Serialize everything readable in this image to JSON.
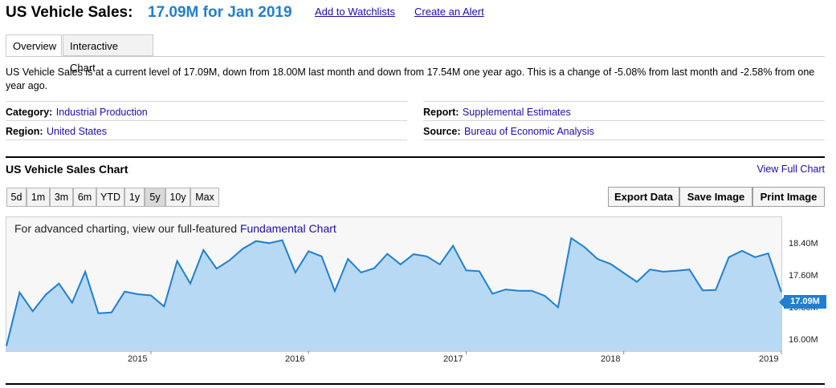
{
  "header": {
    "title": "US Vehicle Sales:",
    "value_text": "17.09M for Jan 2019",
    "watchlist_link": "Add to Watchlists",
    "alert_link": "Create an Alert"
  },
  "tabs": [
    {
      "label": "Overview",
      "active": true
    },
    {
      "label": "Interactive Chart",
      "active": false
    }
  ],
  "description": "US Vehicle Sales is at a current level of 17.09M, down from 18.00M last month and down from 17.54M one year ago. This is a change of -5.08% from last month and -2.58% from one year ago.",
  "meta": {
    "category_label": "Category:",
    "category_value": "Industrial Production",
    "region_label": "Region:",
    "region_value": "United States",
    "report_label": "Report:",
    "report_value": "Supplemental Estimates",
    "source_label": "Source:",
    "source_value": "Bureau of Economic Analysis"
  },
  "chart_section": {
    "title": "US Vehicle Sales Chart",
    "view_full": "View Full Chart",
    "ranges": [
      {
        "label": "5d",
        "selected": false
      },
      {
        "label": "1m",
        "selected": false
      },
      {
        "label": "3m",
        "selected": false
      },
      {
        "label": "6m",
        "selected": false
      },
      {
        "label": "YTD",
        "selected": false
      },
      {
        "label": "1y",
        "selected": false
      },
      {
        "label": "5y",
        "selected": true
      },
      {
        "label": "10y",
        "selected": false
      },
      {
        "label": "Max",
        "selected": false
      }
    ],
    "actions": [
      "Export Data",
      "Save Image",
      "Print Image"
    ],
    "advanced_text": "For advanced charting, view our full-featured",
    "advanced_link": "Fundamental Chart"
  },
  "chart_data": {
    "type": "area",
    "title": "",
    "xlabel": "",
    "ylabel": "",
    "ylim": [
      15.7,
      18.85
    ],
    "y_ticks": [
      "16.00M",
      "16.80M",
      "17.60M",
      "18.40M"
    ],
    "x_ticks": [
      "2015",
      "2016",
      "2017",
      "2018",
      "2019"
    ],
    "last_value_label": "17.09M",
    "colors": {
      "line": "#1f7fd1",
      "fill": "#b8d9f3",
      "badge": "#1f7fd1"
    },
    "x": [
      "2014-02",
      "2014-03",
      "2014-04",
      "2014-05",
      "2014-06",
      "2014-07",
      "2014-08",
      "2014-09",
      "2014-10",
      "2014-11",
      "2014-12",
      "2015-01",
      "2015-02",
      "2015-03",
      "2015-04",
      "2015-05",
      "2015-06",
      "2015-07",
      "2015-08",
      "2015-09",
      "2015-10",
      "2015-11",
      "2015-12",
      "2016-01",
      "2016-02",
      "2016-03",
      "2016-04",
      "2016-05",
      "2016-06",
      "2016-07",
      "2016-08",
      "2016-09",
      "2016-10",
      "2016-11",
      "2016-12",
      "2017-01",
      "2017-02",
      "2017-03",
      "2017-04",
      "2017-05",
      "2017-06",
      "2017-07",
      "2017-08",
      "2017-09",
      "2017-10",
      "2017-11",
      "2017-12",
      "2018-01",
      "2018-02",
      "2018-03",
      "2018-04",
      "2018-05",
      "2018-06",
      "2018-07",
      "2018-08",
      "2018-09",
      "2018-10",
      "2018-11",
      "2018-12",
      "2019-01"
    ],
    "values": [
      15.82,
      17.08,
      16.64,
      17.03,
      17.29,
      16.84,
      17.57,
      16.59,
      16.61,
      17.1,
      17.04,
      17.01,
      16.75,
      17.82,
      17.29,
      18.08,
      17.64,
      17.84,
      18.11,
      18.29,
      18.24,
      18.31,
      17.55,
      18.05,
      17.93,
      17.11,
      17.87,
      17.55,
      17.65,
      17.99,
      17.74,
      17.98,
      17.93,
      17.74,
      18.18,
      17.6,
      17.58,
      17.05,
      17.15,
      17.12,
      17.12,
      17.0,
      16.73,
      18.36,
      18.15,
      17.87,
      17.75,
      17.54,
      17.33,
      17.62,
      17.57,
      17.59,
      17.62,
      17.13,
      17.14,
      17.91,
      18.06,
      17.91,
      18.0,
      17.09
    ]
  }
}
